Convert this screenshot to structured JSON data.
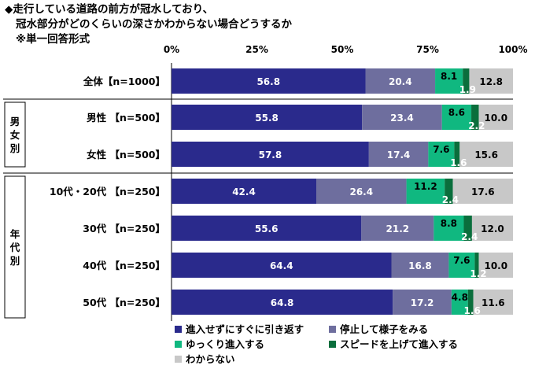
{
  "title": {
    "line1": "◆走行している道路の前方が冠水しており、",
    "line2": "冠水部分がどのくらいの深さかわからない場合どうするか",
    "line3": "※単一回答形式"
  },
  "colors": [
    "#2a2a8c",
    "#6e6e9e",
    "#10b880",
    "#0a6e3c",
    "#c8c8c8"
  ],
  "chart_data": {
    "type": "bar",
    "orientation": "horizontal",
    "stacked": true,
    "percent": true,
    "xlim": [
      0,
      100
    ],
    "ticks": [
      "0%",
      "25%",
      "50%",
      "75%",
      "100%"
    ],
    "tick_values": [
      0,
      25,
      50,
      75,
      100
    ],
    "categories": [
      "全体【n=1000】",
      "男性 【n=500】",
      "女性 【n=500】",
      "10代・20代 【n=250】",
      "30代 【n=250】",
      "40代 【n=250】",
      "50代 【n=250】"
    ],
    "groups": [
      {
        "label": "男女別",
        "rows": [
          1,
          2
        ]
      },
      {
        "label": "年代別",
        "rows": [
          3,
          4,
          5,
          6
        ]
      }
    ],
    "series": [
      {
        "name": "進入せずにすぐに引き返す",
        "values": [
          56.8,
          55.8,
          57.8,
          42.4,
          55.6,
          64.4,
          64.8
        ]
      },
      {
        "name": "停止して様子をみる",
        "values": [
          20.4,
          23.4,
          17.4,
          26.4,
          21.2,
          16.8,
          17.2
        ]
      },
      {
        "name": "ゆっくり進入する",
        "values": [
          8.1,
          8.6,
          7.6,
          11.2,
          8.8,
          7.6,
          4.8
        ]
      },
      {
        "name": "スピードを上げて進入する",
        "values": [
          1.9,
          2.2,
          1.6,
          2.4,
          2.4,
          1.2,
          1.6
        ]
      },
      {
        "name": "わからない",
        "values": [
          12.8,
          10.0,
          15.6,
          17.6,
          12.0,
          10.0,
          11.6
        ]
      }
    ],
    "legend": "bottom"
  }
}
